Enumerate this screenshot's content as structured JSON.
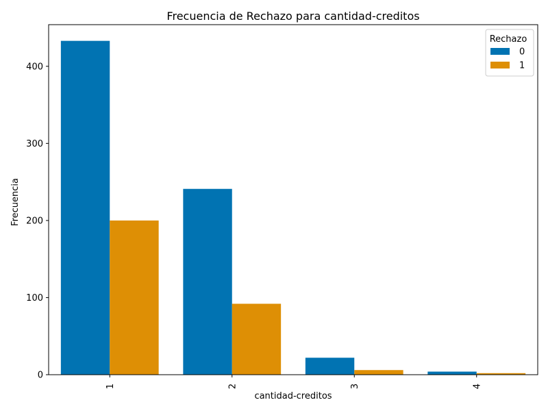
{
  "chart_data": {
    "type": "bar",
    "title": "Frecuencia de Rechazo para cantidad-creditos",
    "xlabel": "cantidad-creditos",
    "ylabel": "Frecuencia",
    "categories": [
      "1",
      "2",
      "3",
      "4"
    ],
    "series": [
      {
        "name": "0",
        "color": "#0173b2",
        "values": [
          433,
          241,
          22,
          4
        ]
      },
      {
        "name": "1",
        "color": "#de8f05",
        "values": [
          200,
          92,
          6,
          2
        ]
      }
    ],
    "ylim": [
      0,
      454
    ],
    "yticks": [
      0,
      100,
      200,
      300,
      400
    ],
    "legend": {
      "title": "Rechazo",
      "position": "top-right"
    },
    "grid": false
  }
}
